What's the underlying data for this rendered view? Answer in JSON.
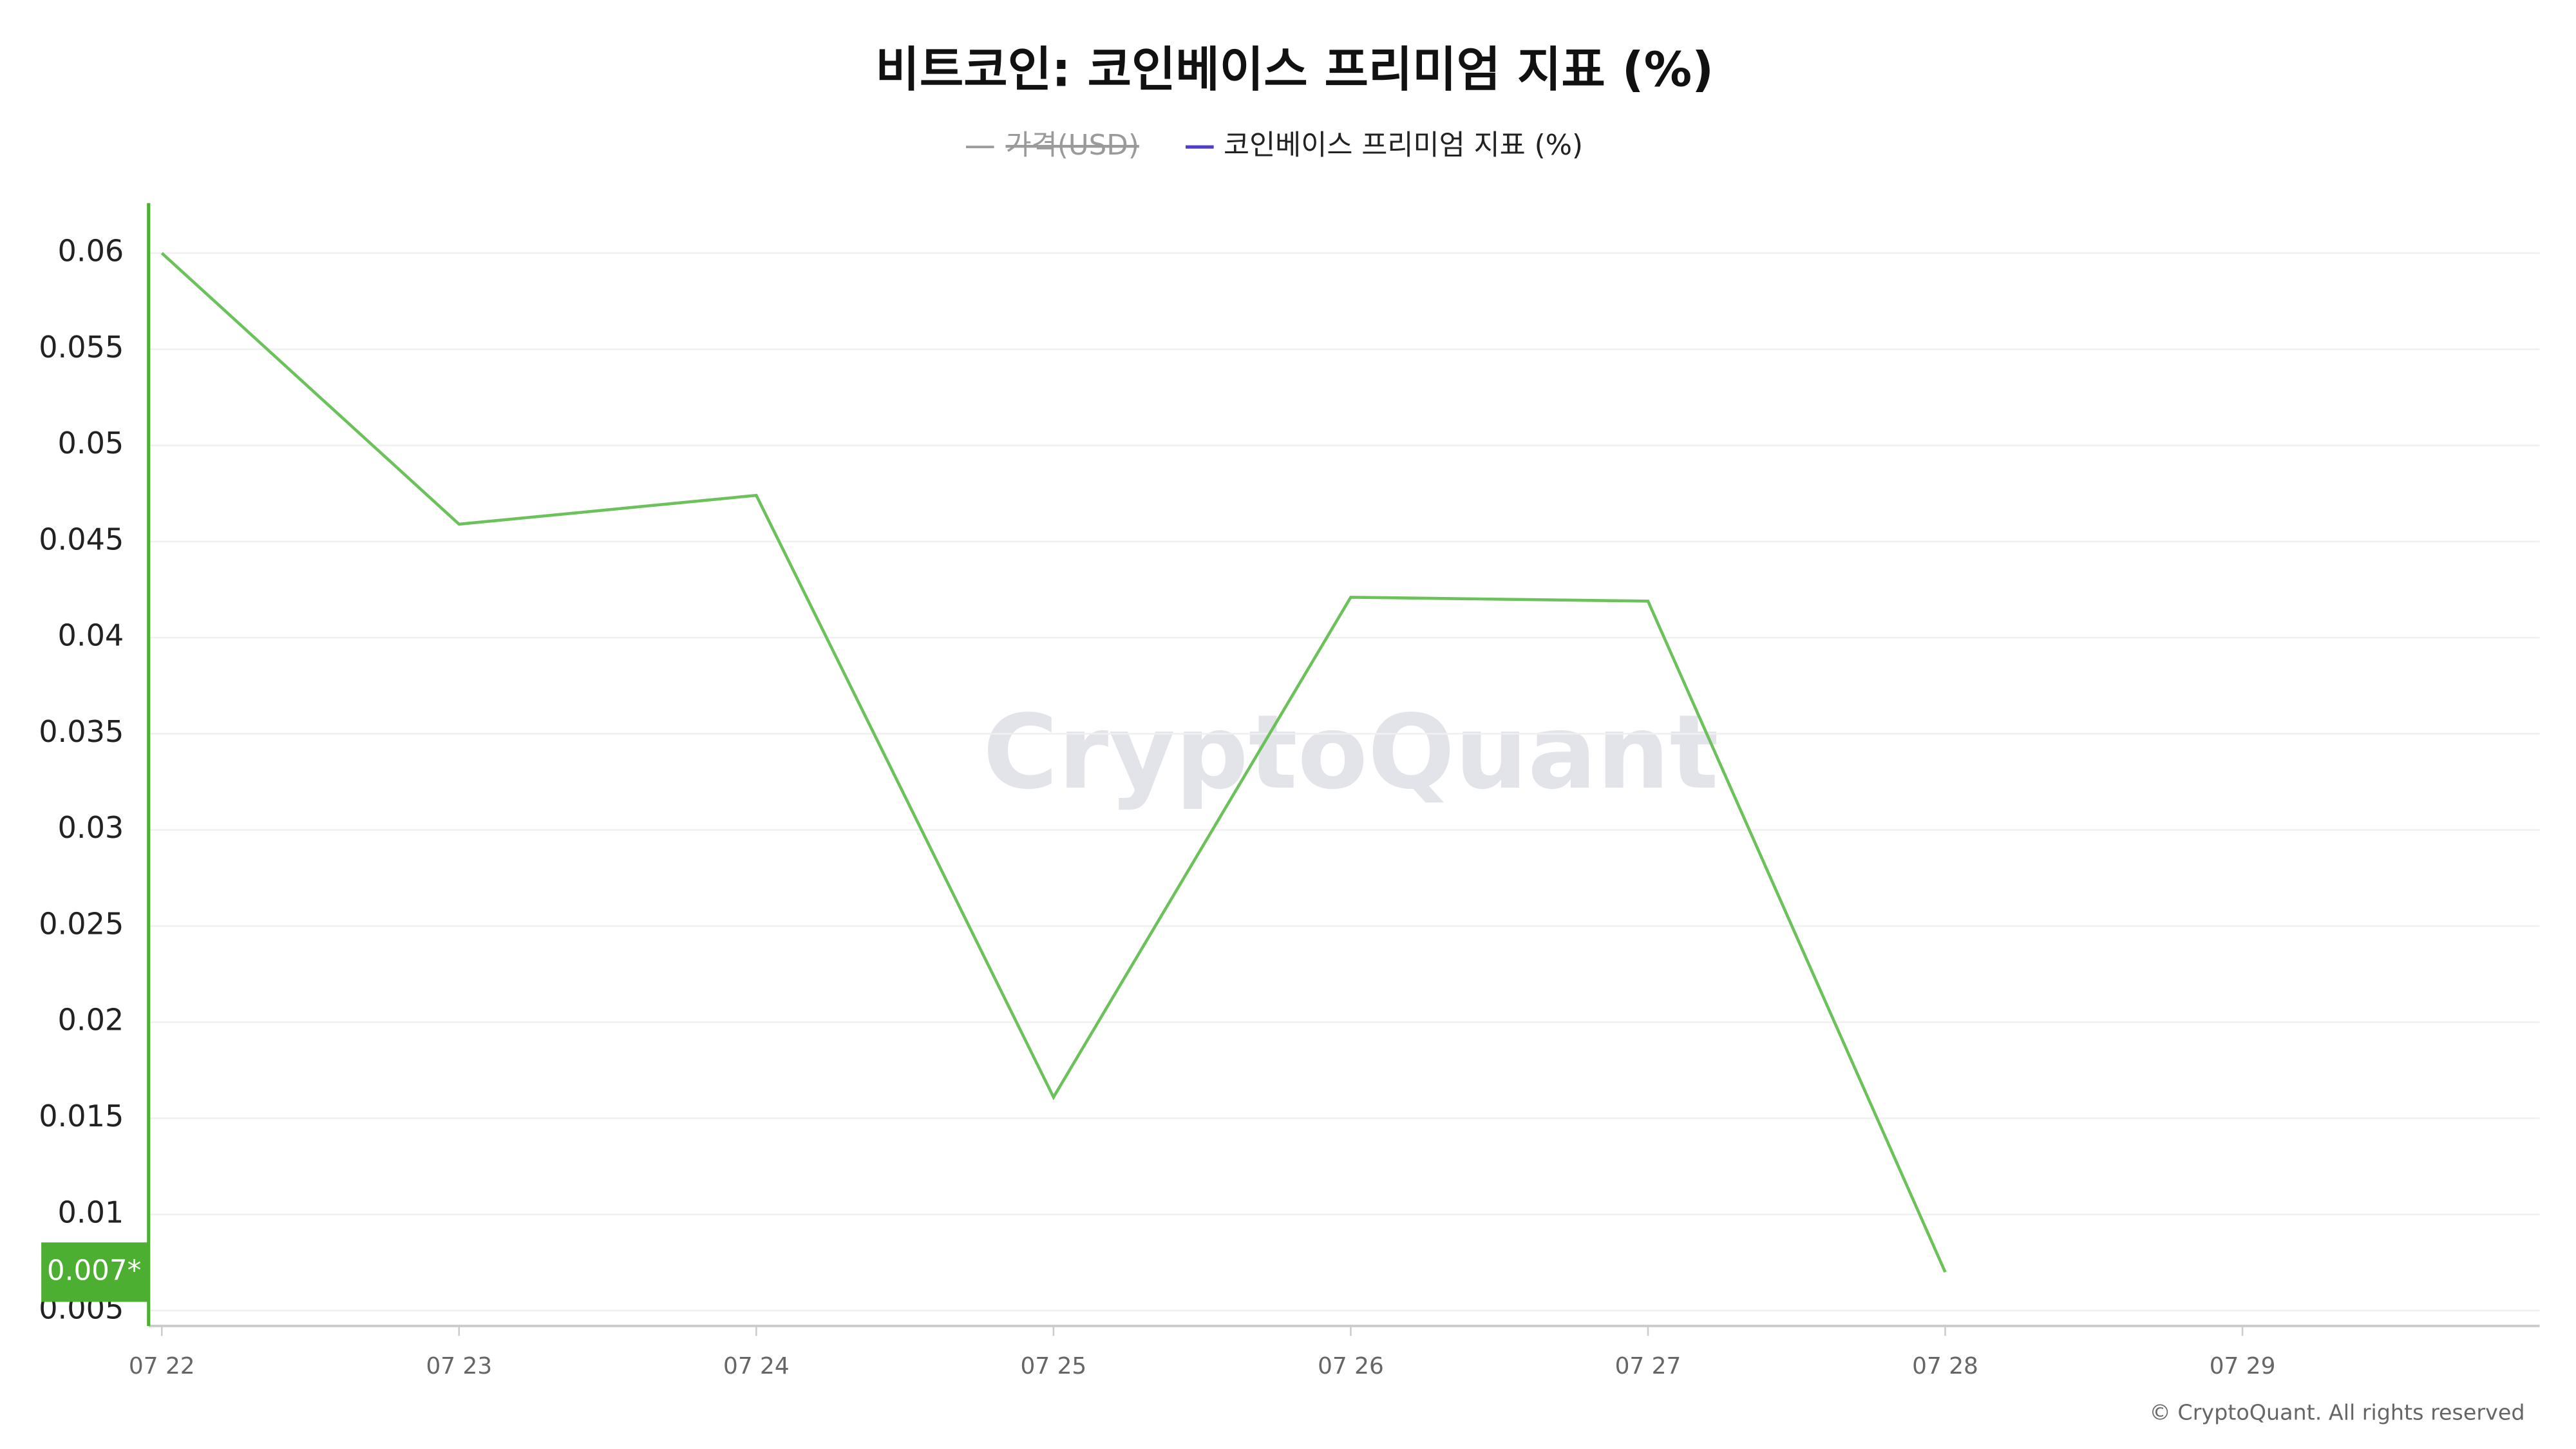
{
  "chart_data": {
    "type": "line",
    "title": "비트코인: 코인베이스 프리미엄 지표 (%)",
    "categories": [
      "07 22",
      "07 23",
      "07 24",
      "07 25",
      "07 26",
      "07 27",
      "07 28",
      "07 29"
    ],
    "series": [
      {
        "name": "코인베이스 프리미엄 지표 (%)",
        "color": "#4b3fc9",
        "line_color": "#6cc25a",
        "values": [
          0.06,
          0.0459,
          0.0474,
          0.0161,
          0.0421,
          0.0419,
          0.007,
          null
        ]
      }
    ],
    "hidden_series": [
      {
        "name": "가격(USD)",
        "color": "#9a9a9a"
      }
    ],
    "last_value_label": "0.007*",
    "axis_color": "#4caf32",
    "ylim": [
      0.0042,
      0.0626
    ],
    "yticks": [
      0.005,
      0.01,
      0.015,
      0.02,
      0.025,
      0.03,
      0.035,
      0.04,
      0.045,
      0.05,
      0.055,
      0.06
    ],
    "grid": true,
    "watermark": "CryptoQuant",
    "copyright": "© CryptoQuant. All rights reserved"
  }
}
